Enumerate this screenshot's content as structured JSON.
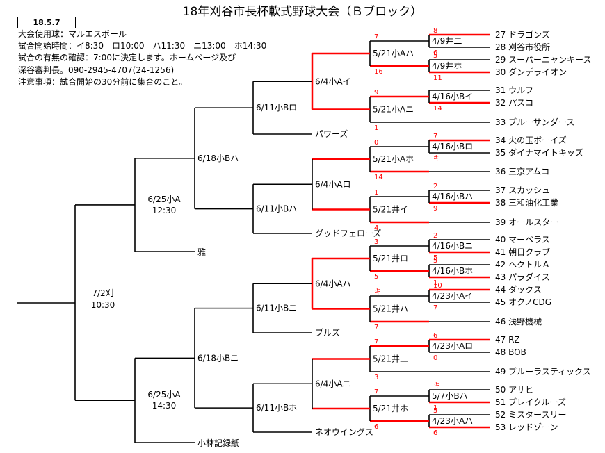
{
  "title": "18年刈谷市長杯軟式野球大会（Ｂブロック）",
  "date": "18.5.7",
  "notes": [
    "大会使用球：マルエスボール",
    "試合開始時間：イ8:30　ロ10:00　ハ11:30　ニ13:00　ホ14:30",
    "試合の有無の確認：7:00に決定します。ホームページ及び",
    "深谷審判長。090-2945-4707(24-1256)",
    "注意事項：試合開始の30分前に集合のこと。"
  ],
  "colors": {
    "win": "#ff0000",
    "line": "#000000"
  },
  "teams": [
    {
      "num": "27",
      "name": "ドラゴンズ"
    },
    {
      "num": "28",
      "name": "刈谷市役所"
    },
    {
      "num": "29",
      "name": "スーパーニャンキース"
    },
    {
      "num": "30",
      "name": "ダンデライオン"
    },
    {
      "num": "31",
      "name": "ウルフ"
    },
    {
      "num": "32",
      "name": "パスコ"
    },
    {
      "num": "33",
      "name": "ブルーサンダース"
    },
    {
      "num": "34",
      "name": "火の玉ボーイズ"
    },
    {
      "num": "35",
      "name": "ダイナマイトキッズ"
    },
    {
      "num": "36",
      "name": "三京アムコ"
    },
    {
      "num": "37",
      "name": "スカッシュ"
    },
    {
      "num": "38",
      "name": "三和油化工業"
    },
    {
      "num": "39",
      "name": "オールスター"
    },
    {
      "num": "40",
      "name": "マーベラス"
    },
    {
      "num": "41",
      "name": "朝日クラブ"
    },
    {
      "num": "42",
      "name": "ヘクトルＡ"
    },
    {
      "num": "43",
      "name": "パラダイス"
    },
    {
      "num": "44",
      "name": "ダックス"
    },
    {
      "num": "45",
      "name": "オクノCDG"
    },
    {
      "num": "46",
      "name": "浅野機械"
    },
    {
      "num": "47",
      "name": "RZ"
    },
    {
      "num": "48",
      "name": "BOB"
    },
    {
      "num": "49",
      "name": "ブルーラスティックス"
    },
    {
      "num": "50",
      "name": "アサヒ"
    },
    {
      "num": "51",
      "name": "ブレイクルーズ"
    },
    {
      "num": "52",
      "name": "ミスタースリー"
    },
    {
      "num": "53",
      "name": "レッドゾーン"
    }
  ],
  "seeds": [
    "パワーズ",
    "グッドフェローズ",
    "ブルズ",
    "ネオウイングス",
    "雅",
    "小林記録紙"
  ],
  "r1": [
    {
      "label": "4/9井二",
      "s1": "8",
      "s2": "6"
    },
    {
      "label": "4/9井ホ",
      "s1": "5",
      "s2": "11"
    },
    {
      "label": "4/16小Bイ",
      "s1": "",
      "s2": "14"
    },
    {
      "label": "4/16小Bロ",
      "s1": "7",
      "s2": "キ"
    },
    {
      "label": "4/16小Bハ",
      "s1": "2",
      "s2": "9"
    },
    {
      "label": "4/16小Bニ",
      "s1": "2",
      "s2": "5"
    },
    {
      "label": "4/16小Bホ",
      "s1": "5",
      "s2": "1"
    },
    {
      "label": "4/23小Aイ",
      "s1": "10",
      "s2": "7"
    },
    {
      "label": "4/23小Aロ",
      "s1": "6",
      "s2": "0"
    },
    {
      "label": "5/7小Bハ",
      "s1": "キ",
      "s2": "1"
    },
    {
      "label": "4/23小Aハ",
      "s1": "5",
      "s2": "6"
    }
  ],
  "r2": [
    {
      "label": "5/21小Aハ",
      "s1": "7",
      "s2": "16"
    },
    {
      "label": "5/21小Aニ",
      "s1": "9",
      "s2": "1"
    },
    {
      "label": "5/21小Aホ",
      "s1": "0",
      "s2": "14"
    },
    {
      "label": "5/21井イ",
      "s1": "1",
      "s2": "4"
    },
    {
      "label": "5/21井ロ",
      "s1": "3",
      "s2": "5"
    },
    {
      "label": "5/21井ハ",
      "s1": "キ",
      "s2": "7"
    },
    {
      "label": "5/21井二",
      "s1": "7",
      "s2": "3"
    },
    {
      "label": "5/21井ホ",
      "s1": "7",
      "s2": "6"
    }
  ],
  "r3": [
    "6/4小Aイ",
    "6/4小Aロ",
    "6/4小Aハ",
    "6/4小Aニ"
  ],
  "r4": [
    "6/11小Bロ",
    "6/11小Bハ",
    "6/11小Bニ",
    "6/11小Bホ"
  ],
  "r5": [
    "6/18小Bハ",
    "6/18小Bニ"
  ],
  "r6": [
    {
      "date": "6/25小A",
      "time": "12:30"
    },
    {
      "date": "6/25小A",
      "time": "14:30"
    }
  ],
  "final": {
    "date": "7/2刈",
    "time": "10:30"
  }
}
